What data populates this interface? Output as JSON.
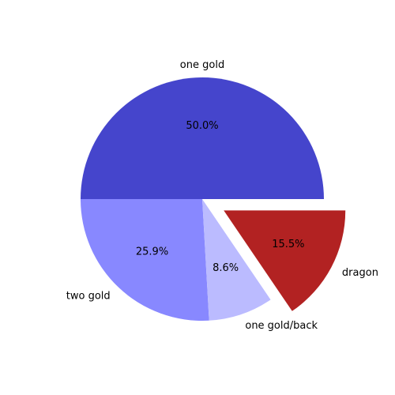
{
  "chart_data": {
    "type": "pie",
    "title": "",
    "start_angle_deg": 0,
    "direction": "counterclockwise",
    "slices": [
      {
        "label": "one gold",
        "value": 50.0,
        "pct_text": "50.0%",
        "color": "#4545cc",
        "explode": false
      },
      {
        "label": "two gold",
        "value": 25.9,
        "pct_text": "25.9%",
        "color": "#8888ff",
        "explode": false
      },
      {
        "label": "one gold/back",
        "value": 8.6,
        "pct_text": "8.6%",
        "color": "#bbbbff",
        "explode": false
      },
      {
        "label": "dragon",
        "value": 15.5,
        "pct_text": "15.5%",
        "color": "#b22222",
        "explode": true
      }
    ]
  }
}
